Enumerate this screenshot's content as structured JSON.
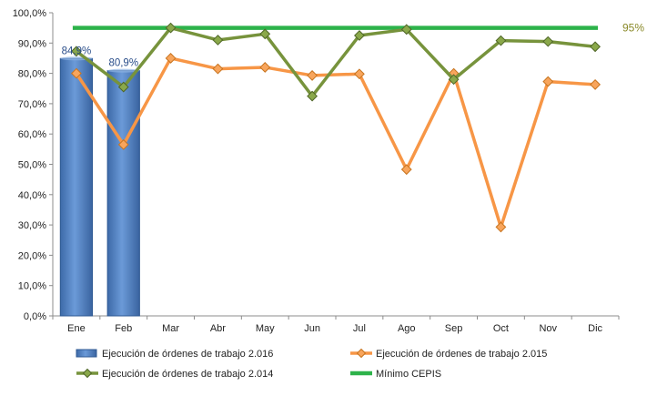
{
  "chart_data": {
    "type": "bar",
    "categories": [
      "Ene",
      "Feb",
      "Mar",
      "Abr",
      "May",
      "Jun",
      "Jul",
      "Ago",
      "Sep",
      "Oct",
      "Nov",
      "Dic"
    ],
    "ylim": [
      0,
      100
    ],
    "yticks": [
      "0,0%",
      "10,0%",
      "20,0%",
      "30,0%",
      "40,0%",
      "50,0%",
      "60,0%",
      "70,0%",
      "80,0%",
      "90,0%",
      "100,0%"
    ],
    "grid": false,
    "legend_position": "bottom",
    "series": [
      {
        "name": "Ejecución de órdenes de trabajo 2.016",
        "kind": "bar",
        "color": "#4f81bd",
        "values": [
          84.9,
          80.9,
          null,
          null,
          null,
          null,
          null,
          null,
          null,
          null,
          null,
          null
        ],
        "data_labels": [
          "84,9%",
          "80,9%"
        ]
      },
      {
        "name": "Ejecución de órdenes de trabajo 2.015",
        "kind": "line",
        "color": "#f79646",
        "values": [
          80.0,
          56.5,
          85.0,
          81.5,
          82.0,
          79.3,
          79.8,
          48.3,
          80.0,
          29.3,
          77.3,
          76.3
        ]
      },
      {
        "name": "Ejecución de órdenes de trabajo 2.014",
        "kind": "line",
        "color": "#77933c",
        "values": [
          87.3,
          75.5,
          95.0,
          91.0,
          93.0,
          72.5,
          92.5,
          94.5,
          78.0,
          90.8,
          90.5,
          88.8
        ]
      },
      {
        "name": "Mínimo CEPIS",
        "kind": "reference",
        "color": "#2db34a",
        "value": 95,
        "label": "95%"
      }
    ]
  }
}
